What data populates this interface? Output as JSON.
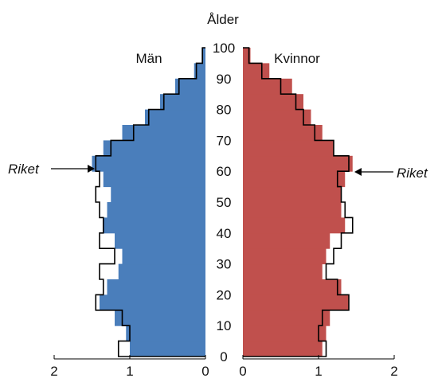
{
  "chart_data": {
    "type": "population-pyramid",
    "title": "",
    "age_axis_label": "Ålder",
    "age_ticks": [
      "0",
      "10",
      "20",
      "30",
      "40",
      "50",
      "60",
      "70",
      "80",
      "90",
      "100"
    ],
    "age_ticks_num": [
      0,
      10,
      20,
      30,
      40,
      50,
      60,
      70,
      80,
      90,
      100
    ],
    "ylim": [
      0,
      100
    ],
    "x_ticks_left": [
      "2",
      "1",
      "0"
    ],
    "x_ticks_left_num": [
      2,
      1,
      0
    ],
    "x_ticks_right": [
      "0",
      "1",
      "2"
    ],
    "x_ticks_right_num": [
      0,
      1,
      2
    ],
    "xlim": [
      0,
      2
    ],
    "left_heading": "Män",
    "right_heading": "Kvinnor",
    "reference_label_left": "Riket",
    "reference_label_right": "Riket",
    "reference_age": 62,
    "colors": {
      "men": "#4a7ebb",
      "women": "#c0504d",
      "reference": "#000000"
    },
    "age_bands": [
      {
        "age": 0,
        "men": 1.0,
        "women": 1.05
      },
      {
        "age": 5,
        "men": 1.05,
        "women": 1.1
      },
      {
        "age": 10,
        "men": 1.2,
        "women": 1.15
      },
      {
        "age": 15,
        "men": 1.4,
        "women": 1.4
      },
      {
        "age": 20,
        "men": 1.3,
        "women": 1.3
      },
      {
        "age": 25,
        "men": 1.15,
        "women": 1.05
      },
      {
        "age": 30,
        "men": 1.1,
        "women": 1.1
      },
      {
        "age": 35,
        "men": 1.2,
        "women": 1.15
      },
      {
        "age": 40,
        "men": 1.35,
        "women": 1.35
      },
      {
        "age": 45,
        "men": 1.3,
        "women": 1.3
      },
      {
        "age": 50,
        "men": 1.25,
        "women": 1.3
      },
      {
        "age": 55,
        "men": 1.35,
        "women": 1.35
      },
      {
        "age": 60,
        "men": 1.5,
        "women": 1.45
      },
      {
        "age": 65,
        "men": 1.35,
        "women": 1.2
      },
      {
        "age": 70,
        "men": 1.1,
        "women": 1.05
      },
      {
        "age": 75,
        "men": 0.8,
        "women": 0.9
      },
      {
        "age": 80,
        "men": 0.6,
        "women": 0.8
      },
      {
        "age": 85,
        "men": 0.4,
        "women": 0.65
      },
      {
        "age": 90,
        "men": 0.15,
        "women": 0.35
      },
      {
        "age": 95,
        "men": 0.05,
        "women": 0.1
      }
    ],
    "reference_bands": [
      {
        "age": 0,
        "men": 1.15,
        "women": 1.1
      },
      {
        "age": 5,
        "men": 1.0,
        "women": 1.0
      },
      {
        "age": 10,
        "men": 1.1,
        "women": 1.05
      },
      {
        "age": 15,
        "men": 1.45,
        "women": 1.4
      },
      {
        "age": 20,
        "men": 1.35,
        "women": 1.25
      },
      {
        "age": 25,
        "men": 1.4,
        "women": 1.1
      },
      {
        "age": 30,
        "men": 1.2,
        "women": 1.2
      },
      {
        "age": 35,
        "men": 1.4,
        "women": 1.3
      },
      {
        "age": 40,
        "men": 1.35,
        "women": 1.45
      },
      {
        "age": 45,
        "men": 1.4,
        "women": 1.35
      },
      {
        "age": 50,
        "men": 1.45,
        "women": 1.3
      },
      {
        "age": 55,
        "men": 1.4,
        "women": 1.25
      },
      {
        "age": 60,
        "men": 1.45,
        "women": 1.4
      },
      {
        "age": 65,
        "men": 1.25,
        "women": 1.2
      },
      {
        "age": 70,
        "men": 0.95,
        "women": 0.95
      },
      {
        "age": 75,
        "men": 0.75,
        "women": 0.8
      },
      {
        "age": 80,
        "men": 0.55,
        "women": 0.7
      },
      {
        "age": 85,
        "men": 0.35,
        "women": 0.5
      },
      {
        "age": 90,
        "men": 0.12,
        "women": 0.25
      },
      {
        "age": 95,
        "men": 0.04,
        "women": 0.08
      }
    ]
  }
}
